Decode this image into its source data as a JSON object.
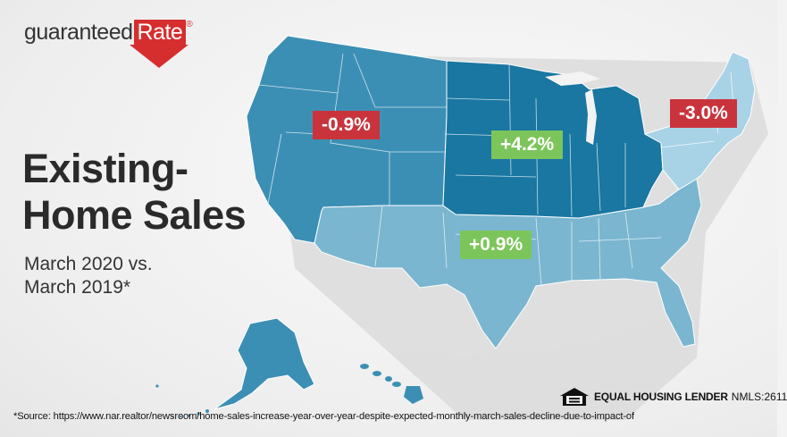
{
  "brand": {
    "name_part1": "guaranteed",
    "name_part2": "Rate",
    "registered_mark": "®",
    "colors": {
      "brand_red": "#d62e2f",
      "text": "#333333"
    }
  },
  "headline": "Existing-\nHome Sales",
  "subhead": "March 2020 vs.\nMarch 2019*",
  "map": {
    "colors": {
      "west": "#3c8fb4",
      "midwest": "#1977a1",
      "south": "#7ab6d0",
      "northeast": "#a8d2e6",
      "shadow": "#d9d9d9",
      "borders": "#ffffff"
    },
    "regions": [
      {
        "name": "West",
        "change": "-0.9%",
        "direction": "decrease"
      },
      {
        "name": "Midwest",
        "change": "+4.2%",
        "direction": "increase"
      },
      {
        "name": "South",
        "change": "+0.9%",
        "direction": "increase"
      },
      {
        "name": "Northeast",
        "change": "-3.0%",
        "direction": "decrease"
      }
    ],
    "badge_colors": {
      "decrease": "#c9343c",
      "increase": "#7cc55a"
    }
  },
  "footer": {
    "equal_housing_label": "EQUAL HOUSING LENDER",
    "nmls": "NMLS:2611",
    "source": "*Source: https://www.nar.realtor/newsroom/home-sales-increase-year-over-year-despite-expected-monthly-march-sales-decline-due-to-impact-of"
  }
}
